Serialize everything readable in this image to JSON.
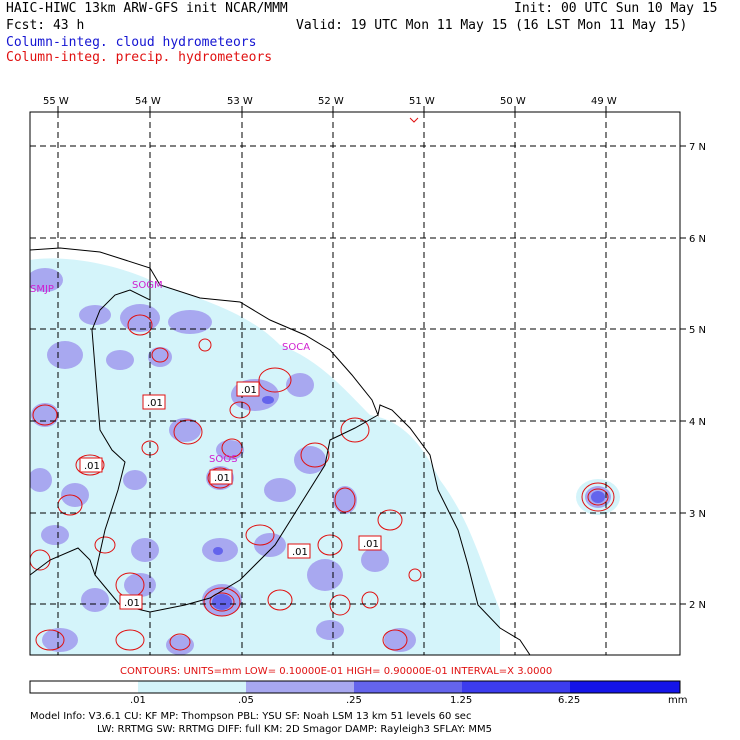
{
  "header": {
    "title": "HAIC-HIWC 13km ARW-GFS init   NCAR/MMM",
    "init": "Init: 00 UTC Sun 10 May 15",
    "fcst": "Fcst:   43 h",
    "valid": "Valid: 19 UTC Mon 11 May 15 (16 LST Mon 11 May 15)",
    "legend_cloud": "Column-integ. cloud hydrometeors",
    "legend_precip": "Column-integ. precip. hydrometeors",
    "legend_cloud_color": "#1414d2",
    "legend_precip_color": "#e01010"
  },
  "map": {
    "lon_labels": [
      "55 W",
      "54 W",
      "53 W",
      "52 W",
      "51 W",
      "50 W",
      "49 W"
    ],
    "lat_labels": [
      "7 N",
      "6 N",
      "5 N",
      "4 N",
      "3 N",
      "2 N"
    ],
    "stations": [
      "SMJP",
      "SOGM",
      "SOCA",
      "SOOS"
    ],
    "contour_labels": [
      ".01",
      ".01",
      ".01",
      ".01",
      ".01",
      ".01"
    ],
    "station_color": "#d020d0",
    "contour_color": "#e01010",
    "fill_colors": [
      "#d4f4fa",
      "#a8a8f0",
      "#6464ec",
      "#1e1ee6"
    ]
  },
  "footer": {
    "contours": "CONTOURS:  UNITS=mm  LOW= 0.10000E-01  HIGH= 0.90000E-01  INTERVAL=X  3.0000",
    "colorbar_labels": [
      ".01",
      ".05",
      ".25",
      "1.25",
      "6.25",
      "mm"
    ],
    "colorbar_colors": [
      "#ffffff",
      "#d4f4fa",
      "#a8a8f0",
      "#6464ec",
      "#3c3cee",
      "#1414e8"
    ],
    "model_line1": "Model Info: V3.6.1    CU: KF      MP: Thompson    PBL: YSU      SF: Noah LSM    13 km   51 levels  60 sec",
    "model_line2": "LW: RRTMG   SW: RRTMG  DIFF: full   KM: 2D Smagor DAMP: Rayleigh3  SFLAY: MM5"
  }
}
